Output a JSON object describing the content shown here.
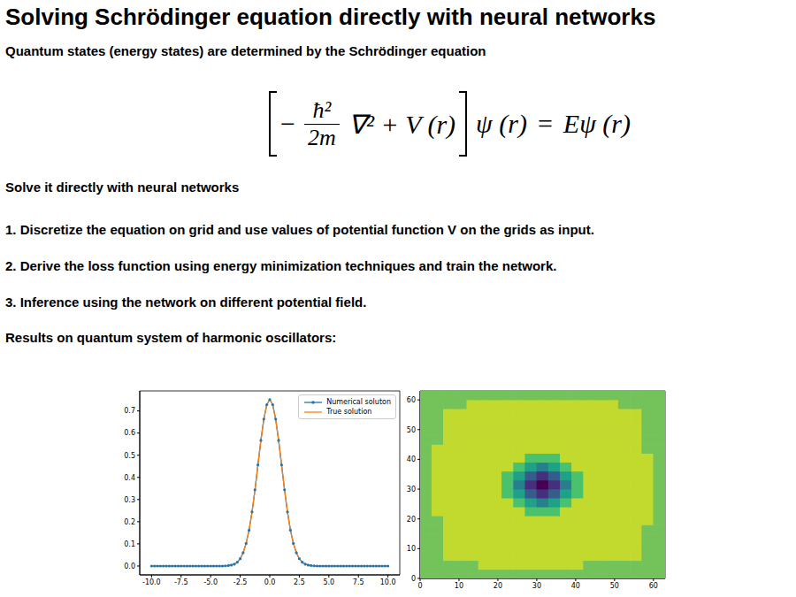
{
  "title": "Solving Schrödinger equation directly with neural networks",
  "intro": "Quantum states (energy states) are determined by the Schrödinger equation",
  "equation": {
    "minus": "−",
    "numerator": "ħ²",
    "denominator": "2m",
    "operator": "∇² + V (r)",
    "lhs_psi": "ψ (r)",
    "equals": "=",
    "rhs": "Eψ (r)"
  },
  "subtitle": "Solve it directly with neural networks",
  "steps": [
    "1.  Discretize the equation on grid and use values of potential function V on the grids as input.",
    "2.  Derive the loss function using energy minimization techniques and train the network.",
    "3.  Inference using the network on different potential field."
  ],
  "results_heading": "Results on quantum system of harmonic oscillators:",
  "chart_data": [
    {
      "type": "line",
      "x": [
        -10,
        -9.75,
        -9.5,
        -9.25,
        -9,
        -8.75,
        -8.5,
        -8.25,
        -8,
        -7.75,
        -7.5,
        -7.25,
        -7,
        -6.75,
        -6.5,
        -6.25,
        -6,
        -5.75,
        -5.5,
        -5.25,
        -5,
        -4.75,
        -4.5,
        -4.25,
        -4,
        -3.75,
        -3.5,
        -3.25,
        -3,
        -2.75,
        -2.5,
        -2.25,
        -2,
        -1.75,
        -1.5,
        -1.25,
        -1,
        -0.75,
        -0.5,
        -0.25,
        0,
        0.25,
        0.5,
        0.75,
        1,
        1.25,
        1.5,
        1.75,
        2,
        2.25,
        2.5,
        2.75,
        3,
        3.25,
        3.5,
        3.75,
        4,
        4.25,
        4.5,
        4.75,
        5,
        5.25,
        5.5,
        5.75,
        6,
        6.25,
        6.5,
        6.75,
        7,
        7.25,
        7.5,
        7.75,
        8,
        8.25,
        8.5,
        8.75,
        9,
        9.25,
        9.5,
        9.75,
        10
      ],
      "series": [
        {
          "name": "Numerical soluton",
          "color": "#1f77b4",
          "marker": "circle",
          "values": [
            0,
            0,
            0,
            0,
            0,
            0,
            0,
            0,
            0,
            0,
            0,
            0,
            0,
            0,
            0,
            0,
            0,
            0,
            0,
            0,
            0,
            0,
            0,
            0,
            0,
            0.001,
            0.002,
            0.004,
            0.008,
            0.017,
            0.033,
            0.06,
            0.102,
            0.162,
            0.244,
            0.344,
            0.456,
            0.567,
            0.663,
            0.728,
            0.751,
            0.728,
            0.663,
            0.567,
            0.456,
            0.344,
            0.244,
            0.162,
            0.102,
            0.06,
            0.033,
            0.017,
            0.008,
            0.004,
            0.002,
            0.001,
            0,
            0,
            0,
            0,
            0,
            0,
            0,
            0,
            0,
            0,
            0,
            0,
            0,
            0,
            0,
            0,
            0,
            0,
            0,
            0,
            0,
            0,
            0,
            0,
            0
          ]
        },
        {
          "name": "True solution",
          "color": "#ff7f0e",
          "values": [
            0,
            0,
            0,
            0,
            0,
            0,
            0,
            0,
            0,
            0,
            0,
            0,
            0,
            0,
            0,
            0,
            0,
            0,
            0,
            0,
            0,
            0,
            0,
            0,
            0,
            0.001,
            0.002,
            0.004,
            0.008,
            0.017,
            0.033,
            0.06,
            0.102,
            0.162,
            0.244,
            0.344,
            0.456,
            0.567,
            0.663,
            0.728,
            0.751,
            0.728,
            0.663,
            0.567,
            0.456,
            0.344,
            0.244,
            0.162,
            0.102,
            0.06,
            0.033,
            0.017,
            0.008,
            0.004,
            0.002,
            0.001,
            0,
            0,
            0,
            0,
            0,
            0,
            0,
            0,
            0,
            0,
            0,
            0,
            0,
            0,
            0,
            0,
            0,
            0,
            0,
            0,
            0,
            0,
            0,
            0,
            0
          ]
        }
      ],
      "xlim": [
        -11,
        11
      ],
      "xticks": [
        {
          "value": -10,
          "label": "-10.0"
        },
        -7.5,
        {
          "value": -5,
          "label": "-5.0"
        },
        -2.5,
        {
          "value": 0,
          "label": "0.0"
        },
        2.5,
        {
          "value": 5,
          "label": "5.0"
        },
        7.5,
        {
          "value": 10,
          "label": "10.0"
        }
      ],
      "ylim": [
        -0.04,
        0.79
      ],
      "yticks": [
        {
          "value": 0,
          "label": "0.0"
        },
        0.1,
        0.2,
        0.3,
        0.4,
        0.5,
        0.6,
        0.7
      ],
      "legend": "upper right",
      "grid": false
    },
    {
      "type": "contour",
      "x": [
        1.5,
        4.5,
        7.5,
        10.5,
        13.5,
        16.5,
        19.5,
        22.5,
        25.5,
        28.5,
        31.5,
        34.5,
        37.5,
        40.5,
        43.5,
        46.5,
        49.5,
        52.5,
        55.5,
        58.5,
        61.5
      ],
      "y": [
        1.5,
        4.5,
        7.5,
        10.5,
        13.5,
        16.5,
        19.5,
        22.5,
        25.5,
        28.5,
        31.5,
        34.5,
        37.5,
        40.5,
        43.5,
        46.5,
        49.5,
        52.5,
        55.5,
        58.5,
        61.5
      ],
      "cells": [
        [
          -0.02,
          -0.02,
          -0.02,
          -0.02,
          -0.02,
          -0.02,
          -0.02,
          -0.02,
          -0.02,
          -0.02,
          -0.02,
          -0.02,
          -0.02,
          -0.02,
          -0.02,
          -0.02,
          -0.02,
          -0.02,
          -0.02,
          -0.02,
          -0.02
        ],
        [
          -0.02,
          -0.02,
          -0.02,
          -0.02,
          -0.02,
          0,
          0,
          0,
          0,
          0,
          0,
          0,
          0,
          0,
          -0.02,
          -0.02,
          -0.02,
          -0.02,
          -0.02,
          -0.02,
          -0.02
        ],
        [
          -0.02,
          -0.02,
          0,
          0,
          0,
          0,
          0,
          0,
          0,
          0,
          0,
          0,
          0,
          0,
          0,
          0,
          0,
          0,
          0,
          -0.02,
          -0.02
        ],
        [
          -0.02,
          -0.02,
          0,
          0,
          0,
          0,
          0,
          0,
          0,
          0,
          0,
          0,
          0,
          0,
          0,
          0,
          0,
          0,
          0,
          -0.02,
          -0.02
        ],
        [
          -0.02,
          -0.02,
          0,
          0,
          0,
          0,
          0,
          0,
          0,
          0,
          0,
          0,
          0,
          0,
          0,
          0,
          0,
          0,
          0,
          -0.02,
          -0.02
        ],
        [
          -0.02,
          -0.02,
          0,
          0,
          0,
          0,
          0,
          0,
          0,
          0,
          0,
          0,
          0,
          0,
          0,
          0,
          0,
          0,
          0,
          -0.02,
          -0.02
        ],
        [
          -0.02,
          -0.02,
          0,
          0,
          0,
          0,
          0,
          0,
          0,
          0,
          0,
          0,
          0,
          0,
          0,
          0,
          0,
          0,
          0,
          0,
          -0.02
        ],
        [
          -0.02,
          0,
          0,
          0,
          0,
          0,
          0,
          0,
          0,
          -0.05,
          -0.06,
          -0.05,
          0,
          0,
          0,
          0,
          0,
          0,
          0,
          0,
          -0.02
        ],
        [
          -0.02,
          0,
          0,
          0,
          0,
          0,
          0,
          0,
          -0.08,
          -0.16,
          -0.25,
          -0.16,
          -0.08,
          0,
          0,
          0,
          0,
          0,
          0,
          0,
          -0.02
        ],
        [
          -0.02,
          0,
          0,
          0,
          0,
          0,
          0,
          -0.05,
          -0.18,
          -0.45,
          -0.55,
          -0.45,
          -0.18,
          -0.05,
          0,
          0,
          0,
          0,
          0,
          0,
          -0.02
        ],
        [
          -0.02,
          0,
          0,
          0,
          0,
          0,
          0,
          -0.07,
          -0.28,
          -0.55,
          -0.72,
          -0.55,
          -0.28,
          -0.07,
          0,
          0,
          0,
          0,
          0,
          0,
          -0.02
        ],
        [
          -0.02,
          0,
          0,
          0,
          0,
          0,
          0,
          -0.05,
          -0.18,
          -0.45,
          -0.55,
          -0.45,
          -0.18,
          -0.05,
          0,
          0,
          0,
          0,
          0,
          0,
          -0.02
        ],
        [
          -0.02,
          0,
          0,
          0,
          0,
          0,
          0,
          0,
          -0.08,
          -0.16,
          -0.25,
          -0.16,
          -0.08,
          0,
          0,
          0,
          0,
          0,
          0,
          0,
          -0.02
        ],
        [
          -0.02,
          0,
          0,
          0,
          0,
          0,
          0,
          0,
          0,
          -0.05,
          -0.06,
          -0.05,
          0,
          0,
          0,
          0,
          0,
          0,
          0,
          0,
          -0.02
        ],
        [
          -0.02,
          0,
          0,
          0,
          0,
          0,
          0,
          0,
          0,
          0,
          0,
          0,
          0,
          0,
          0,
          0,
          0,
          0,
          0,
          -0.02,
          -0.02
        ],
        [
          -0.02,
          -0.02,
          0,
          0,
          0,
          0,
          0,
          0,
          0,
          0,
          0,
          0,
          0,
          0,
          0,
          0,
          0,
          0,
          0,
          -0.02,
          -0.02
        ],
        [
          -0.02,
          -0.02,
          0,
          0,
          0,
          0,
          0,
          0,
          0,
          0,
          0,
          0,
          0,
          0,
          0,
          0,
          0,
          0,
          0,
          -0.02,
          -0.02
        ],
        [
          -0.02,
          -0.02,
          0,
          0,
          0,
          0,
          0,
          0,
          0,
          0,
          0,
          0,
          0,
          0,
          0,
          0,
          0,
          0,
          0,
          -0.02,
          -0.02
        ],
        [
          -0.02,
          -0.02,
          0,
          0,
          0,
          0,
          0,
          0,
          0,
          0,
          0,
          0,
          0,
          0,
          0,
          0,
          0,
          0,
          0,
          -0.02,
          -0.02
        ],
        [
          -0.02,
          -0.02,
          -0.02,
          -0.02,
          0,
          0,
          0,
          0,
          0,
          0,
          0,
          0,
          0,
          0,
          0,
          0,
          0,
          -0.02,
          -0.02,
          -0.02,
          -0.02
        ],
        [
          -0.02,
          -0.02,
          -0.02,
          -0.02,
          -0.02,
          -0.02,
          -0.02,
          -0.02,
          -0.02,
          -0.02,
          -0.02,
          -0.02,
          -0.02,
          -0.02,
          -0.02,
          -0.02,
          -0.02,
          -0.02,
          -0.02,
          -0.02,
          -0.02
        ]
      ],
      "levels": [
        -0.8,
        -0.65,
        -0.5,
        -0.35,
        -0.2,
        -0.1,
        -0.04,
        -0.01,
        0.02
      ],
      "colors": [
        "#440154",
        "#46307e",
        "#365c8d",
        "#277f8e",
        "#1fa187",
        "#4ac16d",
        "#73c35a",
        "#c2d92e"
      ],
      "xlim": [
        0,
        63
      ],
      "xticks": [
        0,
        10,
        20,
        30,
        40,
        50,
        60
      ],
      "ylim": [
        0,
        63
      ],
      "yticks": [
        0,
        10,
        20,
        30,
        40,
        50,
        60
      ]
    }
  ]
}
